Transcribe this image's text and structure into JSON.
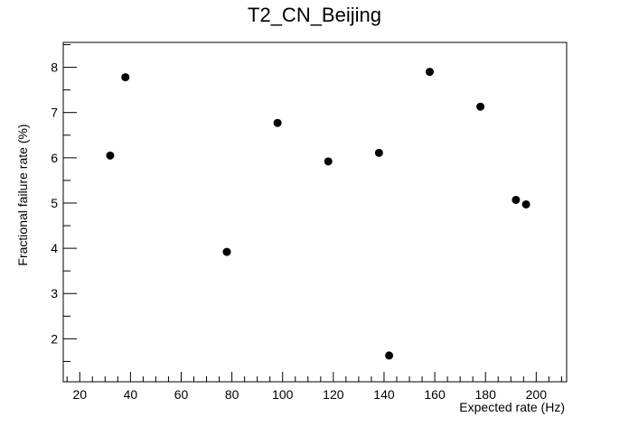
{
  "chart_data": {
    "type": "scatter",
    "title": "T2_CN_Beijing",
    "xlabel": "Expected rate (Hz)",
    "ylabel": "Fractional failure rate (%)",
    "xlim": [
      13.5,
      212
    ],
    "ylim": [
      1.05,
      8.55
    ],
    "xticks": [
      20,
      40,
      60,
      80,
      100,
      120,
      140,
      160,
      180,
      200
    ],
    "yticks": [
      2,
      3,
      4,
      5,
      6,
      7,
      8
    ],
    "x_tick_labels": [
      "20",
      "40",
      "60",
      "80",
      "100",
      "120",
      "140",
      "160",
      "180",
      "200"
    ],
    "y_tick_labels": [
      "2",
      "3",
      "4",
      "5",
      "6",
      "7",
      "8"
    ],
    "grid": false,
    "marker_color": "#000000",
    "points": [
      {
        "x": 32,
        "y": 6.05
      },
      {
        "x": 38,
        "y": 7.78
      },
      {
        "x": 78,
        "y": 3.92
      },
      {
        "x": 98,
        "y": 6.77
      },
      {
        "x": 118,
        "y": 5.92
      },
      {
        "x": 138,
        "y": 6.11
      },
      {
        "x": 142,
        "y": 1.63
      },
      {
        "x": 158,
        "y": 7.9
      },
      {
        "x": 178,
        "y": 7.13
      },
      {
        "x": 192,
        "y": 5.07
      },
      {
        "x": 196,
        "y": 4.97
      }
    ]
  }
}
